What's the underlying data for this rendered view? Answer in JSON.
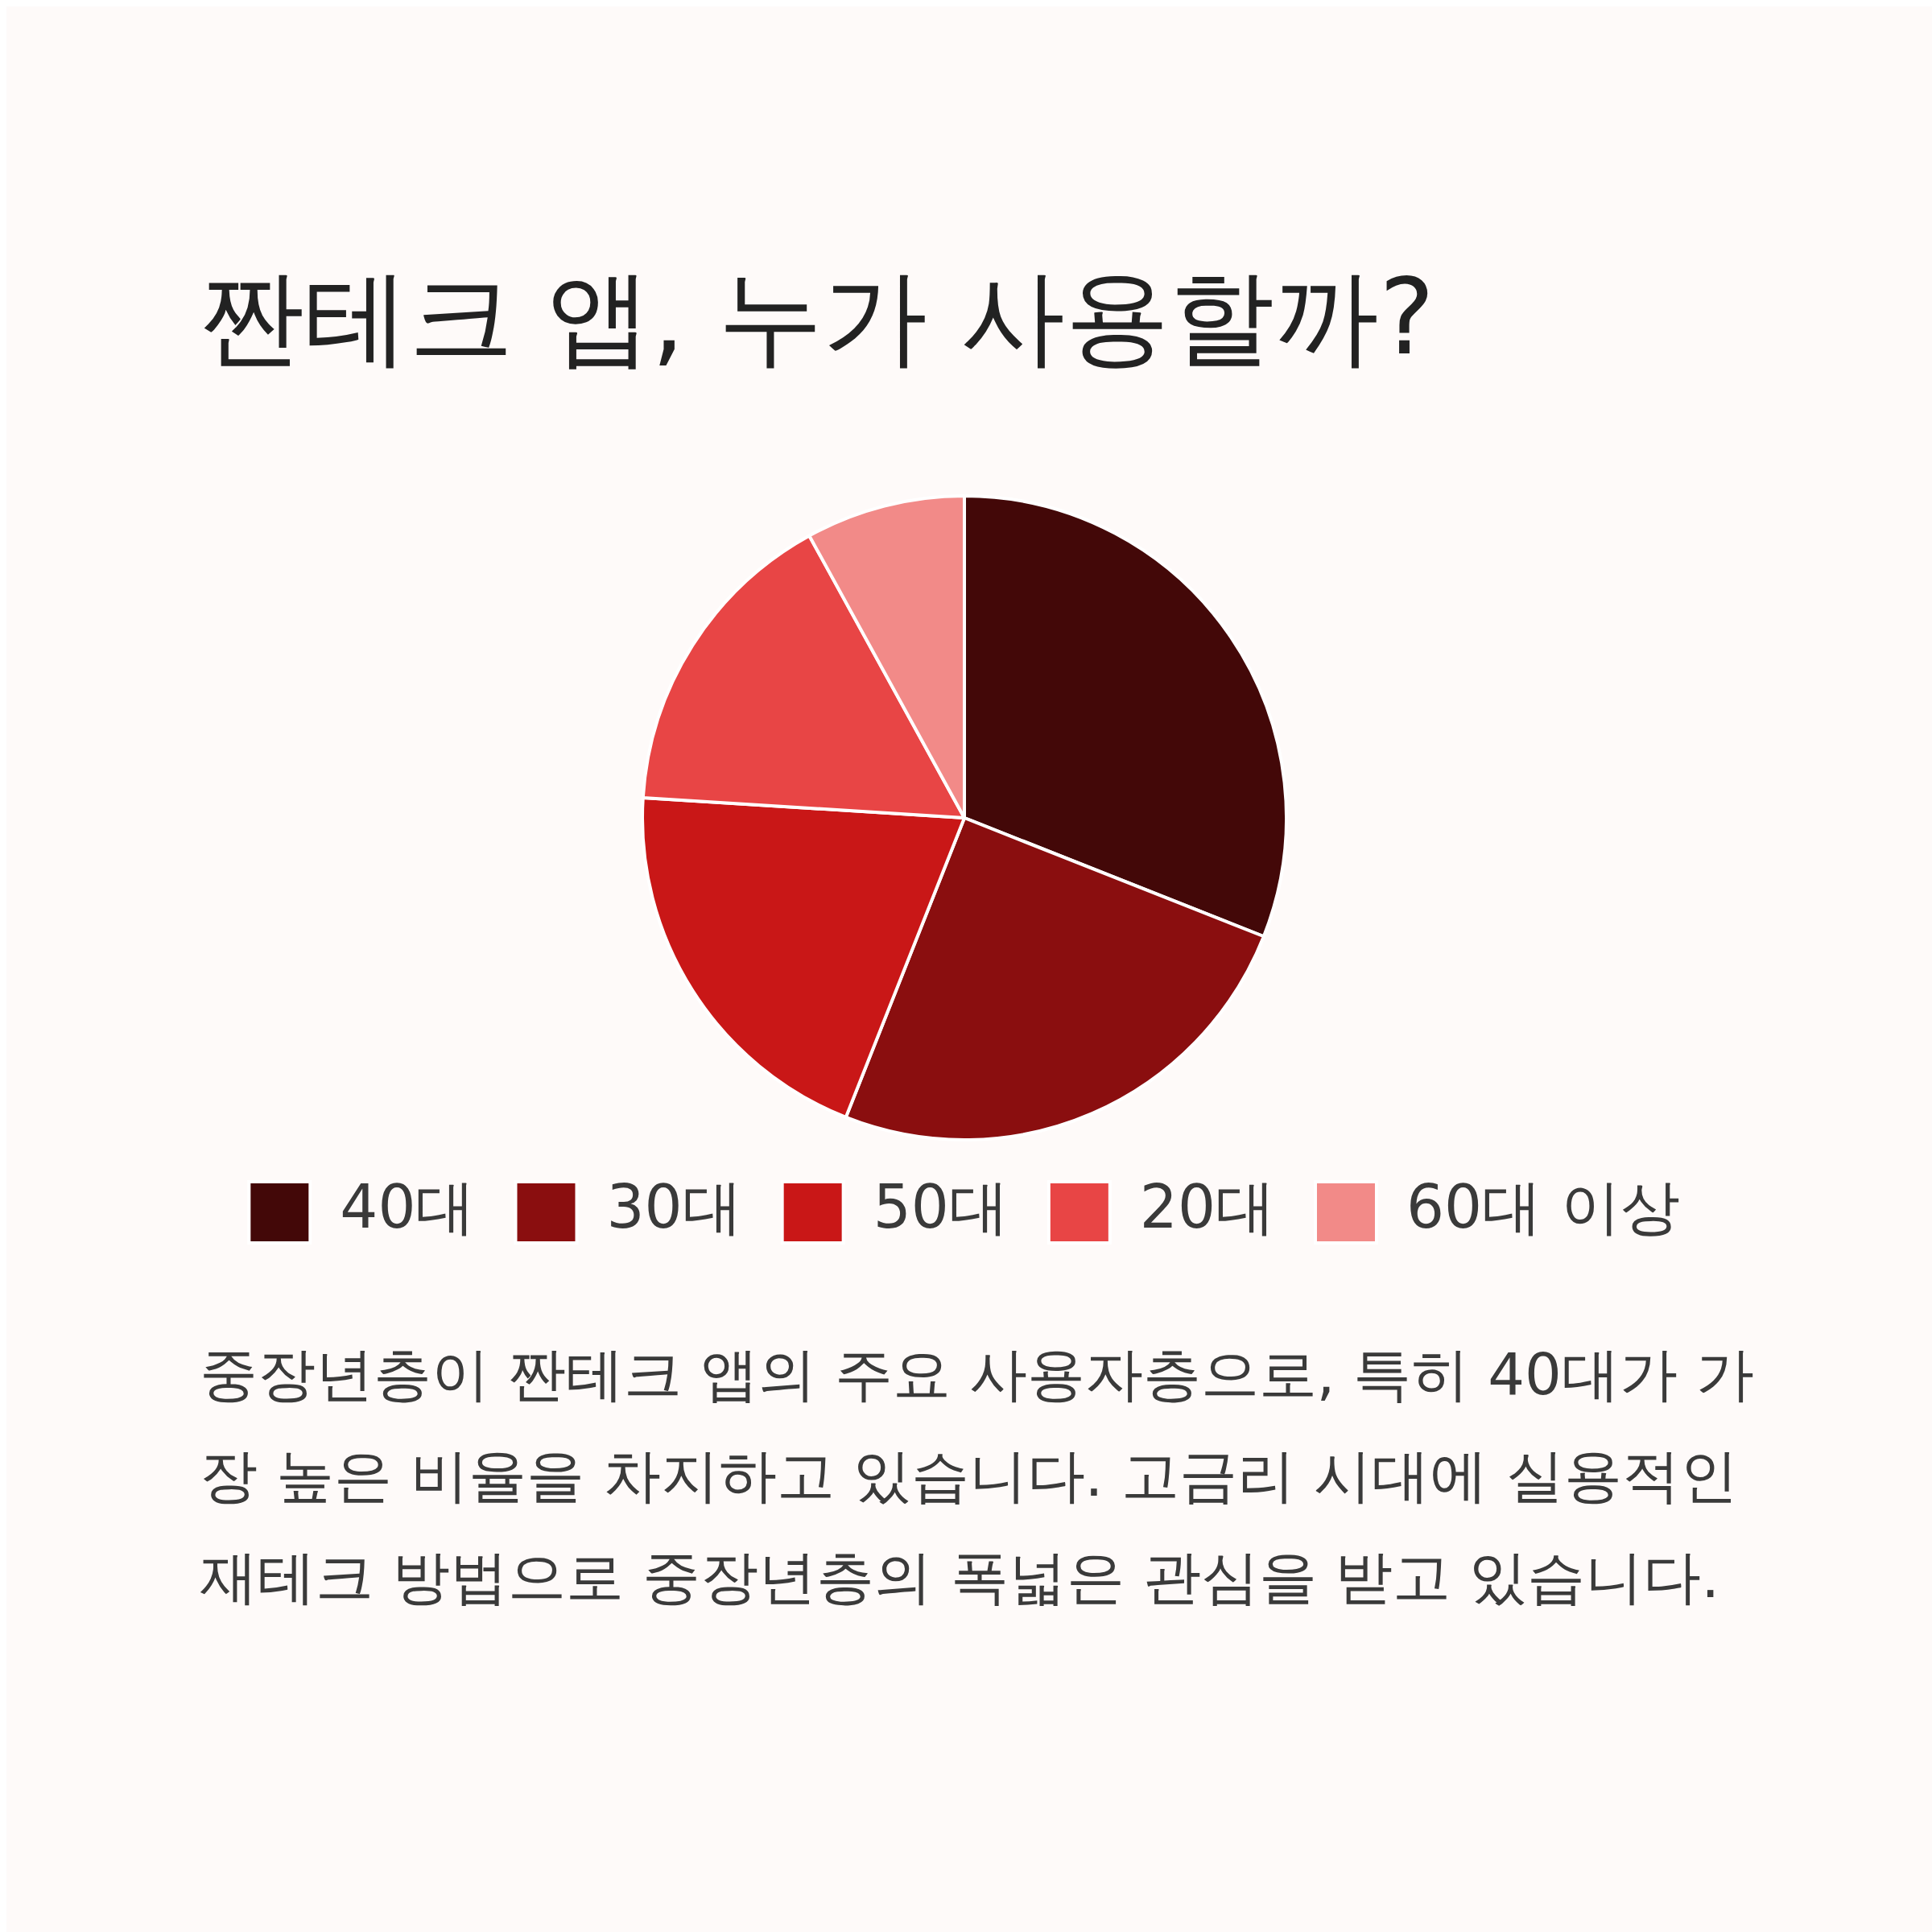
{
  "chart_data": {
    "type": "pie",
    "title": "짠테크 앱, 누가 사용할까?",
    "categories": [
      "40대",
      "30대",
      "50대",
      "20대",
      "60대 이상"
    ],
    "values": [
      31,
      25,
      20,
      16,
      8
    ],
    "colors": [
      "#430808",
      "#8a0e0f",
      "#c91717",
      "#e84545",
      "#f28a88"
    ],
    "legend": "bottom",
    "annotations": [
      "중장년층이 짠테크 앱의 주요 사용자층으로, 특히 40대가 가장 높은 비율을 차지하고 있습니다. 고금리 시대에 실용적인 재테크 방법으로 중장년층의 폭넓은 관심을 받고 있습니다."
    ]
  }
}
